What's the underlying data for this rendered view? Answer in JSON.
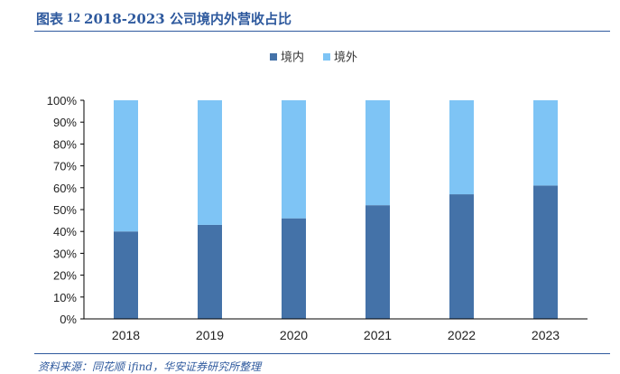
{
  "header": {
    "prefix": "图表",
    "number": "12",
    "text": "2018-2023 公司境内外营收占比"
  },
  "footer": {
    "source": "资料来源：同花顺 ifind，华安证券研究所整理"
  },
  "colors": {
    "domestic": "#4472a8",
    "overseas": "#7ec4f5",
    "title": "#2f5a9e"
  },
  "chart_data": {
    "type": "bar",
    "stacked": true,
    "percent": true,
    "categories": [
      "2018",
      "2019",
      "2020",
      "2021",
      "2022",
      "2023"
    ],
    "series": [
      {
        "name": "境内",
        "values": [
          40,
          43,
          46,
          52,
          57,
          61
        ]
      },
      {
        "name": "境外",
        "values": [
          60,
          57,
          54,
          48,
          43,
          39
        ]
      }
    ],
    "yticks": [
      "0%",
      "10%",
      "20%",
      "30%",
      "40%",
      "50%",
      "60%",
      "70%",
      "80%",
      "90%",
      "100%"
    ],
    "ylim": [
      0,
      100
    ],
    "xlabel": "",
    "ylabel": "",
    "legend_position": "top-center",
    "grid": false
  }
}
